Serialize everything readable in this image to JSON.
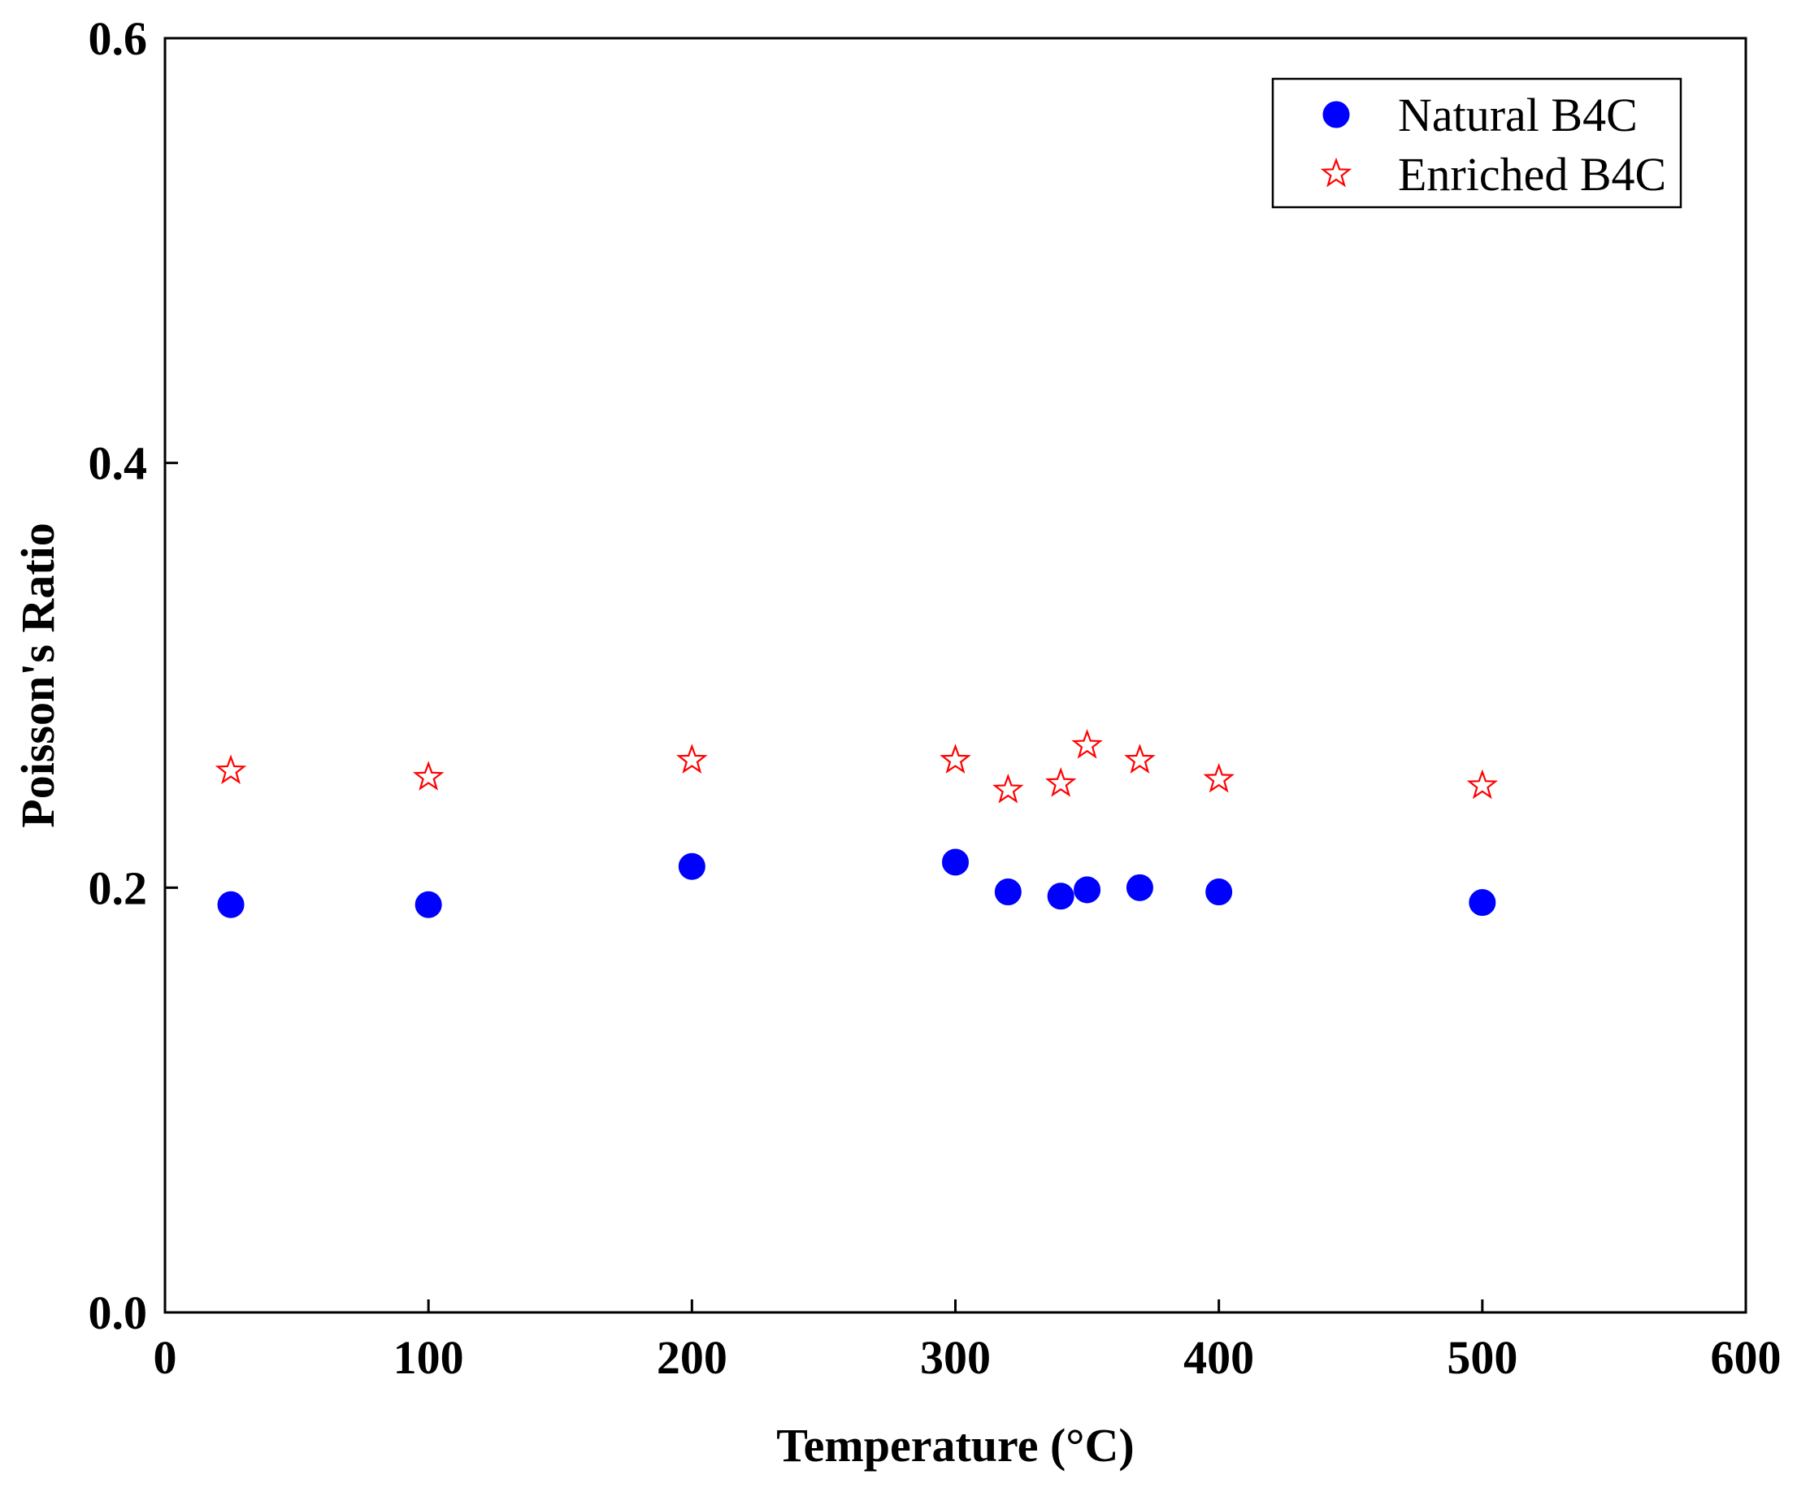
{
  "chart_data": {
    "type": "scatter",
    "title": "",
    "xlabel": "Temperature (°C)",
    "ylabel": "Poisson's Ratio",
    "xlim": [
      0,
      600
    ],
    "ylim": [
      0.0,
      0.6
    ],
    "xticks": [
      0,
      100,
      200,
      300,
      400,
      500,
      600
    ],
    "yticks": [
      0.0,
      0.2,
      0.4,
      0.6
    ],
    "xtick_labels": [
      "0",
      "100",
      "200",
      "300",
      "400",
      "500",
      "600"
    ],
    "ytick_labels": [
      "0.0",
      "0.2",
      "0.4",
      "0.6"
    ],
    "grid": false,
    "legend_position": "top-right",
    "series": [
      {
        "name": "Natural B4C",
        "marker": "filled-circle",
        "color": "#0000ff",
        "x": [
          25,
          100,
          200,
          300,
          320,
          340,
          350,
          370,
          400,
          500
        ],
        "y": [
          0.192,
          0.192,
          0.21,
          0.212,
          0.198,
          0.196,
          0.199,
          0.2,
          0.198,
          0.193
        ]
      },
      {
        "name": "Enriched B4C",
        "marker": "open-star",
        "color": "#ff0000",
        "x": [
          25,
          100,
          200,
          300,
          320,
          340,
          350,
          370,
          400,
          500
        ],
        "y": [
          0.255,
          0.252,
          0.26,
          0.26,
          0.246,
          0.249,
          0.267,
          0.26,
          0.251,
          0.248
        ]
      }
    ]
  }
}
